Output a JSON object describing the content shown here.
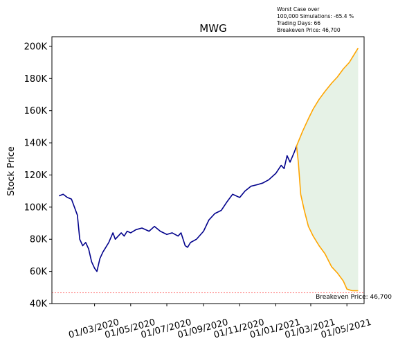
{
  "chart_data": {
    "type": "line",
    "title": "MWG",
    "ylabel": "Stock Price",
    "xlabel": "",
    "ylim": [
      40000,
      206000
    ],
    "yticks": [
      {
        "value": 40000,
        "label": "40K"
      },
      {
        "value": 60000,
        "label": "60K"
      },
      {
        "value": 80000,
        "label": "80K"
      },
      {
        "value": 100000,
        "label": "100K"
      },
      {
        "value": 120000,
        "label": "120K"
      },
      {
        "value": 140000,
        "label": "140K"
      },
      {
        "value": 160000,
        "label": "160K"
      },
      {
        "value": 180000,
        "label": "180K"
      },
      {
        "value": 200000,
        "label": "200K"
      }
    ],
    "xlim": [
      "2019-12-20",
      "2021-05-30"
    ],
    "xticks": [
      {
        "value": "2020-03-01",
        "label": "01/03/2020"
      },
      {
        "value": "2020-05-01",
        "label": "01/05/2020"
      },
      {
        "value": "2020-07-01",
        "label": "01/07/2020"
      },
      {
        "value": "2020-09-01",
        "label": "01/09/2020"
      },
      {
        "value": "2020-11-01",
        "label": "01/11/2020"
      },
      {
        "value": "2021-01-01",
        "label": "01/01/2021"
      },
      {
        "value": "2021-03-01",
        "label": "01/03/2021"
      },
      {
        "value": "2021-05-01",
        "label": "01/05/2021"
      }
    ],
    "grid": false,
    "colors": {
      "history": "#00008b",
      "simulation": "#ffa500",
      "band": "#e6f2e6",
      "breakeven": "#ff0000"
    },
    "series": [
      {
        "role": "history",
        "x": [
          "2020-01-01",
          "2020-01-08",
          "2020-01-15",
          "2020-01-22",
          "2020-02-01",
          "2020-02-05",
          "2020-02-10",
          "2020-02-15",
          "2020-02-20",
          "2020-02-25",
          "2020-03-01",
          "2020-03-05",
          "2020-03-10",
          "2020-03-15",
          "2020-03-20",
          "2020-03-25",
          "2020-04-01",
          "2020-04-05",
          "2020-04-10",
          "2020-04-15",
          "2020-04-20",
          "2020-04-25",
          "2020-05-01",
          "2020-05-10",
          "2020-05-20",
          "2020-06-01",
          "2020-06-10",
          "2020-06-20",
          "2020-07-01",
          "2020-07-10",
          "2020-07-20",
          "2020-07-25",
          "2020-08-01",
          "2020-08-05",
          "2020-08-10",
          "2020-08-20",
          "2020-09-01",
          "2020-09-10",
          "2020-09-20",
          "2020-10-01",
          "2020-10-10",
          "2020-10-20",
          "2020-11-01",
          "2020-11-10",
          "2020-11-20",
          "2020-12-01",
          "2020-12-10",
          "2020-12-20",
          "2021-01-01",
          "2021-01-10",
          "2021-01-15",
          "2021-01-20",
          "2021-01-25",
          "2021-02-01",
          "2021-02-05"
        ],
        "values": [
          107000,
          108000,
          106000,
          105000,
          95000,
          80000,
          76000,
          78000,
          74000,
          66000,
          62000,
          60000,
          68000,
          72000,
          75000,
          78000,
          84000,
          80000,
          82000,
          84000,
          82000,
          85000,
          84000,
          86000,
          87000,
          85000,
          88000,
          85000,
          83000,
          84000,
          82000,
          84000,
          76000,
          75000,
          78000,
          80000,
          85000,
          92000,
          96000,
          98000,
          103000,
          108000,
          106000,
          110000,
          113000,
          114000,
          115000,
          117000,
          121000,
          126000,
          124000,
          132000,
          128000,
          134000,
          138000
        ]
      },
      {
        "role": "simulation-upper",
        "x": [
          "2021-02-05",
          "2021-02-15",
          "2021-02-25",
          "2021-03-05",
          "2021-03-15",
          "2021-03-25",
          "2021-04-05",
          "2021-04-15",
          "2021-04-25",
          "2021-05-05",
          "2021-05-15",
          "2021-05-20"
        ],
        "values": [
          138000,
          147000,
          155000,
          161000,
          167000,
          172000,
          177000,
          181000,
          186000,
          190000,
          196000,
          199000
        ]
      },
      {
        "role": "simulation-lower",
        "x": [
          "2021-02-05",
          "2021-02-08",
          "2021-02-12",
          "2021-02-18",
          "2021-02-25",
          "2021-03-05",
          "2021-03-15",
          "2021-03-25",
          "2021-04-05",
          "2021-04-15",
          "2021-04-25",
          "2021-05-01",
          "2021-05-10",
          "2021-05-20"
        ],
        "values": [
          138000,
          128000,
          108000,
          98000,
          88000,
          82000,
          76000,
          71000,
          63000,
          59000,
          54000,
          49000,
          48000,
          48000
        ]
      }
    ],
    "breakeven": {
      "value": 46700,
      "label": "Breakeven Price: 46,700"
    },
    "annotation_lines": [
      "Worst Case over",
      "100,000 Simulations: -65.4 %",
      "Trading Days: 66",
      "Breakeven Price: 46,700"
    ]
  }
}
